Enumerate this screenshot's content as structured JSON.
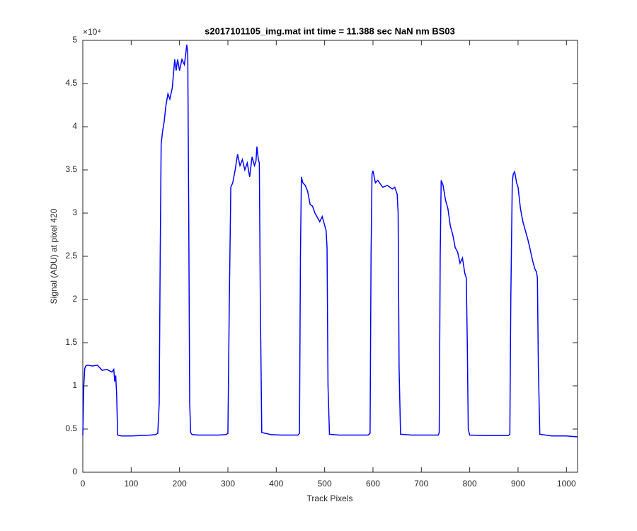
{
  "chart_data": {
    "type": "line",
    "title": "s2017101105_img.mat int time = 11.388 sec  NaN nm BS03",
    "x_label": "Track Pixels",
    "y_label": "Signal (ADU) at pixel 420",
    "y_exponent": "×10⁴",
    "xlim": [
      0,
      1023
    ],
    "ylim": [
      0,
      50000
    ],
    "xticks": [
      0,
      100,
      200,
      300,
      400,
      500,
      600,
      700,
      800,
      900,
      1000
    ],
    "yticks": [
      {
        "value": 0,
        "label": "0"
      },
      {
        "value": 5000,
        "label": "0.5"
      },
      {
        "value": 10000,
        "label": "1"
      },
      {
        "value": 15000,
        "label": "1.5"
      },
      {
        "value": 20000,
        "label": "2"
      },
      {
        "value": 25000,
        "label": "2.5"
      },
      {
        "value": 30000,
        "label": "3"
      },
      {
        "value": 35000,
        "label": "3.5"
      },
      {
        "value": 40000,
        "label": "4"
      },
      {
        "value": 45000,
        "label": "4.5"
      },
      {
        "value": 50000,
        "label": "5"
      }
    ],
    "x": [
      0,
      2,
      4,
      6,
      10,
      20,
      30,
      40,
      50,
      60,
      64,
      66,
      68,
      70,
      72,
      80,
      100,
      120,
      140,
      150,
      155,
      158,
      160,
      162,
      165,
      168,
      172,
      176,
      180,
      185,
      190,
      193,
      196,
      200,
      205,
      210,
      213,
      215,
      217,
      219,
      221,
      223,
      226,
      240,
      260,
      280,
      296,
      300,
      303,
      306,
      310,
      315,
      320,
      325,
      330,
      335,
      340,
      345,
      350,
      355,
      358,
      360,
      363,
      365,
      367,
      370,
      390,
      410,
      430,
      445,
      448,
      450,
      452,
      455,
      460,
      465,
      470,
      475,
      480,
      485,
      490,
      495,
      500,
      503,
      505,
      507,
      510,
      530,
      550,
      570,
      590,
      594,
      596,
      598,
      600,
      605,
      610,
      620,
      630,
      640,
      645,
      650,
      652,
      654,
      657,
      680,
      700,
      720,
      735,
      737,
      739,
      741,
      745,
      750,
      755,
      760,
      765,
      770,
      775,
      780,
      785,
      790,
      793,
      795,
      797,
      800,
      830,
      860,
      880,
      883,
      885,
      888,
      890,
      893,
      897,
      900,
      905,
      910,
      915,
      920,
      925,
      930,
      935,
      938,
      940,
      942,
      945,
      970,
      1000,
      1023
    ],
    "series": [
      {
        "color": "#0000ff",
        "values": [
          4300,
          10000,
          12000,
          12300,
          12400,
          12300,
          12400,
          11800,
          11900,
          11600,
          11900,
          10500,
          11200,
          9000,
          4300,
          4200,
          4200,
          4250,
          4300,
          4350,
          4500,
          8000,
          25000,
          38000,
          39500,
          40500,
          42500,
          43800,
          43200,
          44500,
          47800,
          46500,
          47800,
          46500,
          47800,
          47200,
          48500,
          49500,
          48500,
          30000,
          8000,
          4600,
          4350,
          4300,
          4300,
          4300,
          4350,
          4500,
          20000,
          33000,
          33500,
          35000,
          36800,
          35500,
          36200,
          35000,
          35800,
          34200,
          36500,
          35500,
          36000,
          37700,
          36200,
          35800,
          20000,
          4600,
          4350,
          4300,
          4300,
          4300,
          4500,
          25000,
          34200,
          33500,
          33200,
          32500,
          31000,
          30800,
          30000,
          29500,
          29000,
          29600,
          28600,
          28000,
          26000,
          10000,
          4400,
          4300,
          4300,
          4300,
          4300,
          4500,
          25000,
          34500,
          34900,
          33500,
          33800,
          33000,
          33200,
          32800,
          33000,
          32200,
          30000,
          12000,
          4400,
          4300,
          4300,
          4300,
          4300,
          4600,
          25000,
          33800,
          33200,
          31500,
          30500,
          28500,
          27500,
          26000,
          25500,
          24200,
          24800,
          23000,
          22500,
          15000,
          5000,
          4300,
          4250,
          4250,
          4250,
          4400,
          20000,
          33500,
          34500,
          34800,
          33500,
          33000,
          30500,
          29000,
          28000,
          27000,
          25800,
          24500,
          23500,
          23200,
          22500,
          12000,
          4400,
          4200,
          4200,
          4100
        ]
      }
    ]
  }
}
